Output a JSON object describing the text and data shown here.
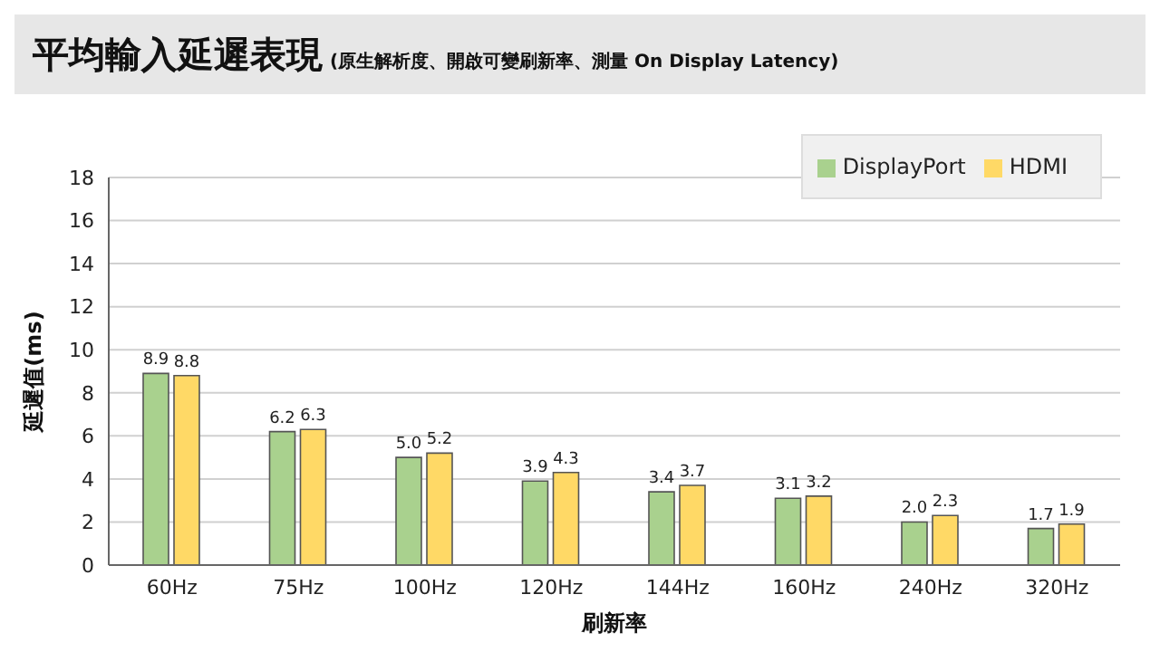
{
  "chart_data": {
    "type": "bar",
    "title": "平均輸入延遲表現",
    "subtitle": "(原生解析度、開啟可變刷新率、測量 On Display Latency)",
    "xlabel": "刷新率",
    "ylabel": "延遲值(ms)",
    "categories": [
      "60Hz",
      "75Hz",
      "100Hz",
      "120Hz",
      "144Hz",
      "160Hz",
      "240Hz",
      "320Hz"
    ],
    "series": [
      {
        "name": "DisplayPort",
        "color": "#a9d18e",
        "values": [
          8.9,
          6.2,
          5.0,
          3.9,
          3.4,
          3.1,
          2.0,
          1.7
        ],
        "value_labels": [
          "8.9",
          "6.2",
          "5.0",
          "3.9",
          "3.4",
          "3.1",
          "2.0",
          "1.7"
        ]
      },
      {
        "name": "HDMI",
        "color": "#ffd966",
        "values": [
          8.8,
          6.3,
          5.2,
          4.3,
          3.7,
          3.2,
          2.3,
          1.9
        ],
        "value_labels": [
          "8.8",
          "6.3",
          "5.2",
          "4.3",
          "3.7",
          "3.2",
          "2.3",
          "1.9"
        ]
      }
    ],
    "ylim": [
      0,
      18
    ],
    "yticks": [
      0,
      2,
      4,
      6,
      8,
      10,
      12,
      14,
      16,
      18
    ],
    "grid": "y",
    "legend": "top right"
  }
}
